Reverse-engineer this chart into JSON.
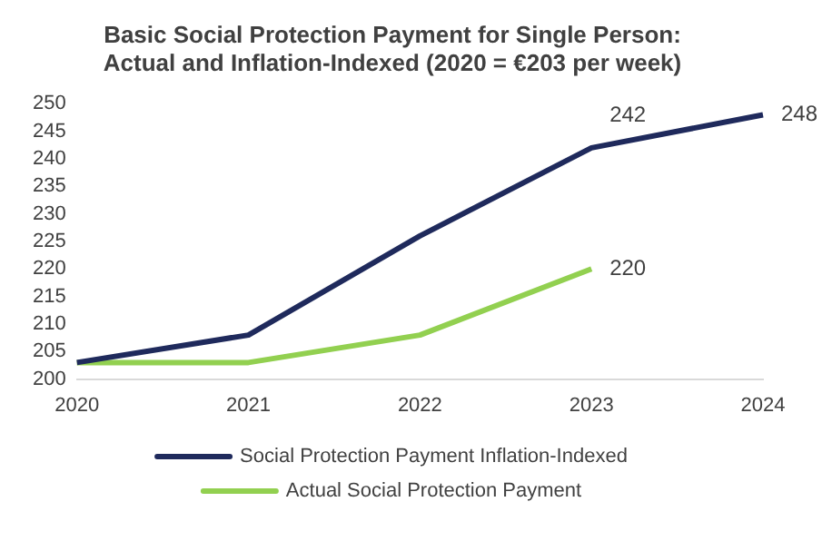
{
  "chart_data": {
    "type": "line",
    "title": "Basic Social Protection Payment for Single Person:\nActual and Inflation-Indexed (2020 = €203 per week)",
    "categories": [
      "2020",
      "2021",
      "2022",
      "2023",
      "2024"
    ],
    "series": [
      {
        "name": "Social Protection Payment Inflation-Indexed",
        "color": "#1f2a5c",
        "values": [
          203,
          208,
          226,
          242,
          248
        ],
        "value_labels": [
          null,
          null,
          null,
          "242",
          "248"
        ]
      },
      {
        "name": "Actual Social Protection Payment",
        "color": "#92d050",
        "values": [
          203,
          203,
          208,
          220,
          null
        ],
        "value_labels": [
          null,
          null,
          null,
          "220",
          null
        ]
      }
    ],
    "ylim": [
      200,
      250
    ],
    "yticks": [
      200,
      205,
      210,
      215,
      220,
      225,
      230,
      235,
      240,
      245,
      250
    ],
    "grid": false,
    "legend": "bottom",
    "marker": "none",
    "line_style": "solid"
  }
}
